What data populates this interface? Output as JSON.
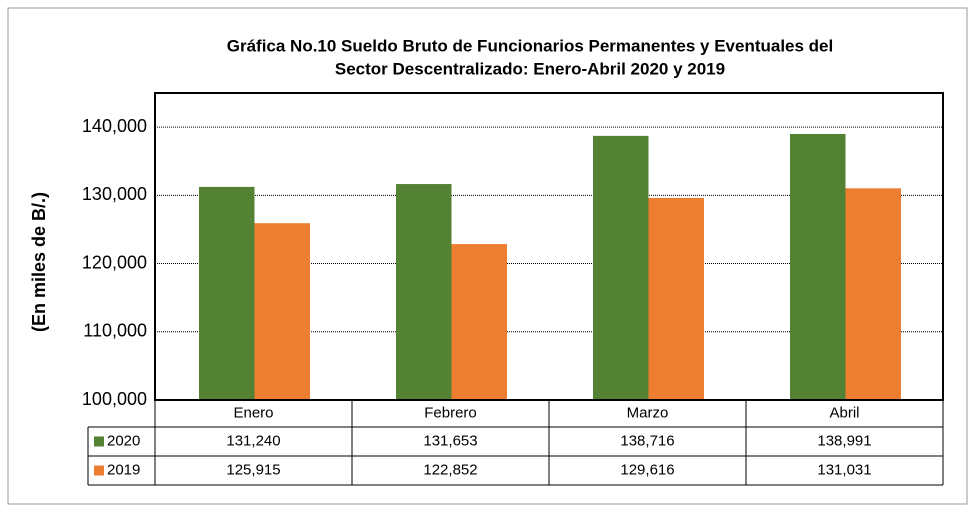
{
  "chart_data": {
    "type": "bar",
    "title": [
      "Gráfica No.10 Sueldo Bruto de Funcionarios Permanentes y Eventuales del",
      "Sector Descentralizado: Enero-Abril 2020 y 2019"
    ],
    "y_label": "(En miles de B/.)",
    "categories": [
      "Enero",
      "Febrero",
      "Marzo",
      "Abril"
    ],
    "series": [
      {
        "name": "2020",
        "color": "#548235",
        "values": [
          131240,
          131653,
          138716,
          138991
        ],
        "value_labels": [
          "131,240",
          "131,653",
          "138,716",
          "138,991"
        ]
      },
      {
        "name": "2019",
        "color": "#ed7d31",
        "values": [
          125915,
          122852,
          129616,
          131031
        ],
        "value_labels": [
          "125,915",
          "122,852",
          "129,616",
          "131,031"
        ]
      }
    ],
    "ylim": [
      100000,
      145000
    ],
    "yticks": [
      {
        "value": 100000,
        "label": "100,000"
      },
      {
        "value": 110000,
        "label": "110,000"
      },
      {
        "value": 120000,
        "label": "120,000"
      },
      {
        "value": 130000,
        "label": "130,000"
      },
      {
        "value": 140000,
        "label": "140,000"
      }
    ],
    "grid": true
  }
}
